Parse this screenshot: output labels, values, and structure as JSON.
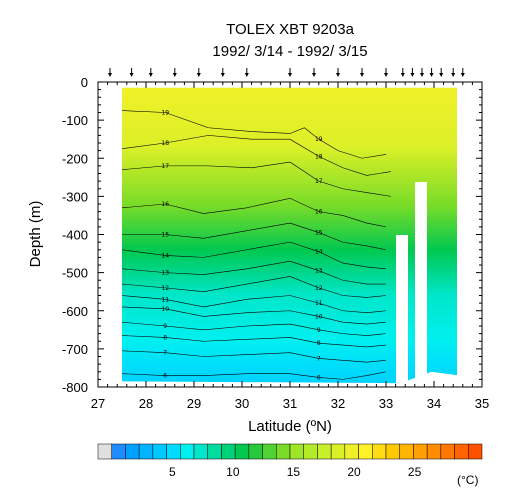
{
  "chart_data": {
    "type": "contour",
    "title_line1": "TOLEX XBT 9203a",
    "title_line2": "1992/ 3/14 - 1992/ 3/15",
    "xlabel": "Latitude (ºN)",
    "ylabel": "Depth (m)",
    "xlim": [
      27,
      35
    ],
    "ylim": [
      -800,
      0
    ],
    "x_ticks": [
      "27",
      "28",
      "29",
      "30",
      "31",
      "32",
      "33",
      "34",
      "35"
    ],
    "y_ticks": [
      "0",
      "-100",
      "-200",
      "-300",
      "-400",
      "-500",
      "-600",
      "-700",
      "-800"
    ],
    "cast_latitudes": [
      27.25,
      27.7,
      28.1,
      28.6,
      29.1,
      29.6,
      30.1,
      31.0,
      31.5,
      32.0,
      32.5,
      33.0,
      33.35,
      33.55,
      33.75,
      33.95,
      34.15,
      34.4,
      34.6
    ],
    "contour_levels_labeled": [
      6,
      7,
      8,
      9,
      10,
      11,
      12,
      13,
      14,
      15,
      16,
      17,
      18,
      19
    ],
    "isotherms": [
      {
        "level": 19,
        "points": [
          [
            27.5,
            -75
          ],
          [
            28.4,
            -80
          ],
          [
            29.3,
            -120
          ],
          [
            30.2,
            -130
          ],
          [
            31.0,
            -135
          ],
          [
            31.3,
            -120
          ],
          [
            31.6,
            -150
          ],
          [
            32.0,
            -180
          ],
          [
            32.5,
            -200
          ],
          [
            33.0,
            -190
          ]
        ]
      },
      {
        "level": 18,
        "points": [
          [
            27.5,
            -175
          ],
          [
            28.4,
            -160
          ],
          [
            29.3,
            -140
          ],
          [
            30.2,
            -150
          ],
          [
            31.0,
            -150
          ],
          [
            31.6,
            -195
          ],
          [
            32.1,
            -225
          ],
          [
            32.6,
            -245
          ],
          [
            33.1,
            -235
          ]
        ]
      },
      {
        "level": 17,
        "points": [
          [
            27.5,
            -230
          ],
          [
            28.4,
            -220
          ],
          [
            29.3,
            -220
          ],
          [
            30.2,
            -225
          ],
          [
            31.0,
            -210
          ],
          [
            31.6,
            -260
          ],
          [
            32.1,
            -280
          ],
          [
            32.6,
            -290
          ],
          [
            33.1,
            -300
          ]
        ]
      },
      {
        "level": 16,
        "points": [
          [
            27.5,
            -330
          ],
          [
            28.4,
            -320
          ],
          [
            29.2,
            -345
          ],
          [
            30.1,
            -330
          ],
          [
            31.0,
            -305
          ],
          [
            31.6,
            -340
          ],
          [
            32.1,
            -350
          ],
          [
            32.6,
            -370
          ],
          [
            33.0,
            -380
          ]
        ]
      },
      {
        "level": 15,
        "points": [
          [
            27.5,
            -400
          ],
          [
            28.4,
            -400
          ],
          [
            29.2,
            -410
          ],
          [
            30.1,
            -390
          ],
          [
            31.0,
            -370
          ],
          [
            31.6,
            -395
          ],
          [
            32.1,
            -420
          ],
          [
            32.6,
            -430
          ],
          [
            33.0,
            -440
          ]
        ]
      },
      {
        "level": 14,
        "points": [
          [
            27.5,
            -440
          ],
          [
            28.4,
            -455
          ],
          [
            29.2,
            -460
          ],
          [
            30.1,
            -440
          ],
          [
            31.0,
            -420
          ],
          [
            31.6,
            -445
          ],
          [
            32.1,
            -475
          ],
          [
            32.6,
            -485
          ],
          [
            33.0,
            -490
          ]
        ]
      },
      {
        "level": 13,
        "points": [
          [
            27.5,
            -490
          ],
          [
            28.4,
            -500
          ],
          [
            29.2,
            -505
          ],
          [
            30.1,
            -490
          ],
          [
            31.0,
            -470
          ],
          [
            31.6,
            -495
          ],
          [
            32.1,
            -520
          ],
          [
            32.6,
            -530
          ],
          [
            33.0,
            -530
          ]
        ]
      },
      {
        "level": 12,
        "points": [
          [
            27.5,
            -530
          ],
          [
            28.4,
            -540
          ],
          [
            29.2,
            -550
          ],
          [
            30.1,
            -530
          ],
          [
            31.0,
            -510
          ],
          [
            31.6,
            -540
          ],
          [
            32.1,
            -560
          ],
          [
            32.6,
            -565
          ],
          [
            33.0,
            -560
          ]
        ]
      },
      {
        "level": 11,
        "points": [
          [
            27.5,
            -560
          ],
          [
            28.4,
            -570
          ],
          [
            29.2,
            -590
          ],
          [
            30.1,
            -570
          ],
          [
            31.0,
            -560
          ],
          [
            31.6,
            -580
          ],
          [
            32.1,
            -600
          ],
          [
            32.6,
            -605
          ],
          [
            33.0,
            -600
          ]
        ]
      },
      {
        "level": 10,
        "points": [
          [
            27.5,
            -590
          ],
          [
            28.4,
            -595
          ],
          [
            29.2,
            -615
          ],
          [
            30.1,
            -605
          ],
          [
            31.0,
            -600
          ],
          [
            31.6,
            -615
          ],
          [
            32.1,
            -630
          ],
          [
            32.6,
            -635
          ],
          [
            33.0,
            -630
          ]
        ]
      },
      {
        "level": 9,
        "points": [
          [
            27.5,
            -630
          ],
          [
            28.4,
            -640
          ],
          [
            29.2,
            -650
          ],
          [
            30.1,
            -640
          ],
          [
            31.0,
            -635
          ],
          [
            31.6,
            -650
          ],
          [
            32.1,
            -660
          ],
          [
            32.6,
            -665
          ],
          [
            33.0,
            -660
          ]
        ]
      },
      {
        "level": 8,
        "points": [
          [
            27.5,
            -665
          ],
          [
            28.4,
            -670
          ],
          [
            29.2,
            -680
          ],
          [
            30.1,
            -675
          ],
          [
            31.0,
            -670
          ],
          [
            31.6,
            -685
          ],
          [
            32.1,
            -690
          ],
          [
            32.6,
            -695
          ],
          [
            33.0,
            -690
          ]
        ]
      },
      {
        "level": 7,
        "points": [
          [
            27.5,
            -705
          ],
          [
            28.4,
            -710
          ],
          [
            29.2,
            -720
          ],
          [
            30.1,
            -715
          ],
          [
            31.0,
            -710
          ],
          [
            31.6,
            -725
          ],
          [
            32.1,
            -730
          ],
          [
            32.6,
            -735
          ],
          [
            33.0,
            -730
          ]
        ]
      },
      {
        "level": 6,
        "points": [
          [
            27.5,
            -765
          ],
          [
            28.4,
            -770
          ],
          [
            29.2,
            -770
          ],
          [
            30.1,
            -765
          ],
          [
            31.0,
            -765
          ],
          [
            31.6,
            -775
          ],
          [
            32.1,
            -780
          ],
          [
            32.6,
            -770
          ],
          [
            33.0,
            -760
          ]
        ]
      }
    ],
    "colorbar": {
      "range": [
        0,
        30
      ],
      "ticks": [
        "5",
        "10",
        "15",
        "20",
        "25"
      ],
      "tick_values": [
        5,
        10,
        15,
        20,
        25
      ],
      "unit": "(°C)",
      "colors": [
        "#e0e0e0",
        "#1e8cff",
        "#00a0ff",
        "#00b4ff",
        "#00c8ff",
        "#00dcff",
        "#00f0f0",
        "#00e6c8",
        "#00dca0",
        "#00d278",
        "#00c850",
        "#28c83c",
        "#50d232",
        "#78dc28",
        "#a0e628",
        "#b4eb28",
        "#c8f028",
        "#dcf028",
        "#f0f028",
        "#fff028",
        "#ffdc14",
        "#ffc800",
        "#ffb400",
        "#ffa000",
        "#ff8c00",
        "#ff7800",
        "#ff6400",
        "#ff5000"
      ]
    }
  }
}
